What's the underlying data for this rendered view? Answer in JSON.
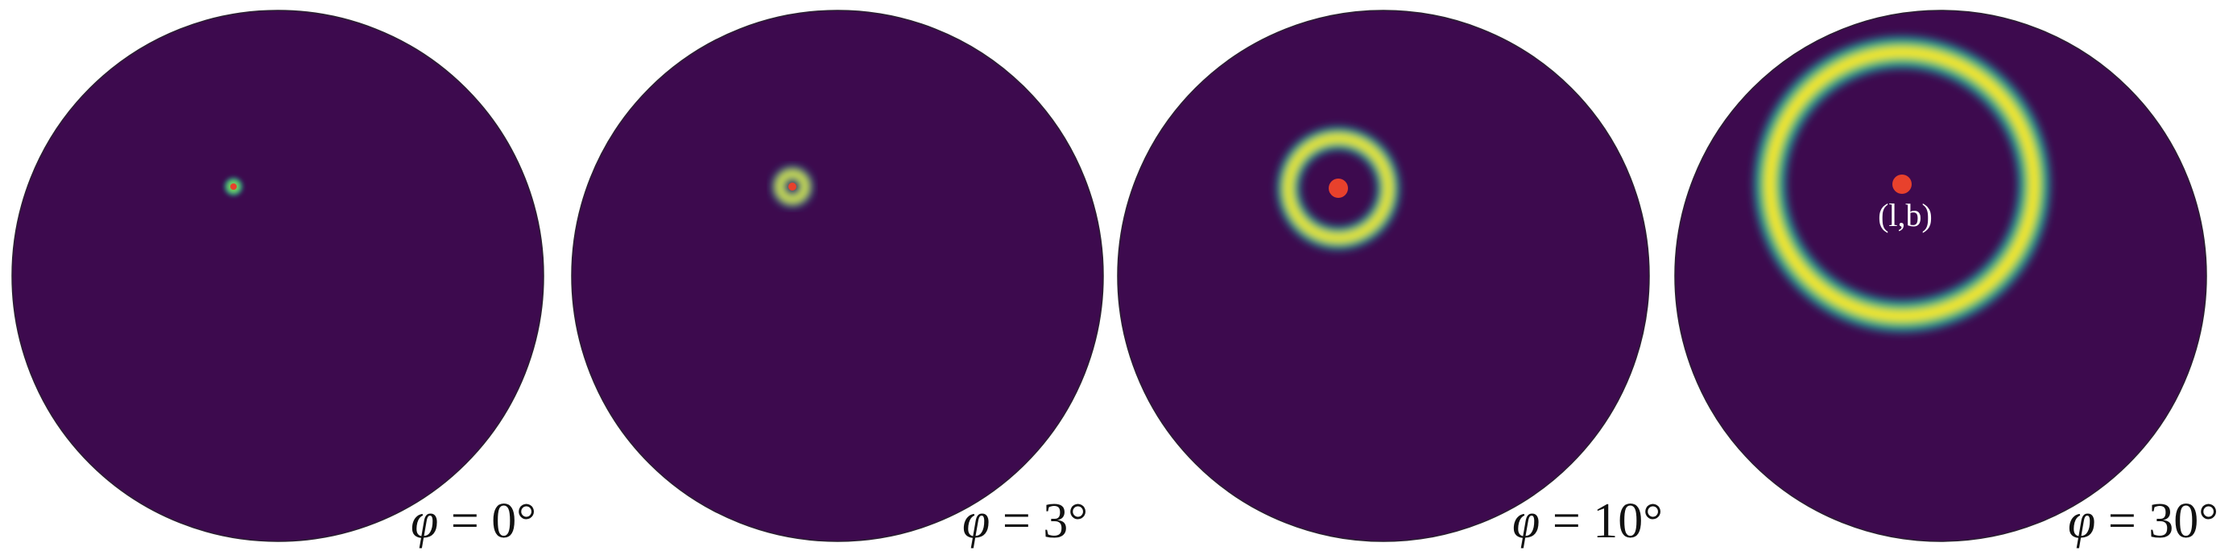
{
  "colors": {
    "background": "#3d0a4e",
    "disk_edge": "#2a2030",
    "marker": "#e8412c",
    "ring_gradient": [
      "#3d0a4e",
      "#2c6f8e",
      "#22a884",
      "#7ad151",
      "#fde725"
    ]
  },
  "panels": [
    {
      "id": "phi-0",
      "phi_deg": 0,
      "label": "φ = 0°",
      "show_point_label": false
    },
    {
      "id": "phi-3",
      "phi_deg": 3,
      "label": "φ = 3°",
      "show_point_label": false
    },
    {
      "id": "phi-10",
      "phi_deg": 10,
      "label": "φ = 10°",
      "show_point_label": false
    },
    {
      "id": "phi-30",
      "phi_deg": 30,
      "label": "φ = 30°",
      "show_point_label": true
    }
  ],
  "point_label": "(l,b)"
}
